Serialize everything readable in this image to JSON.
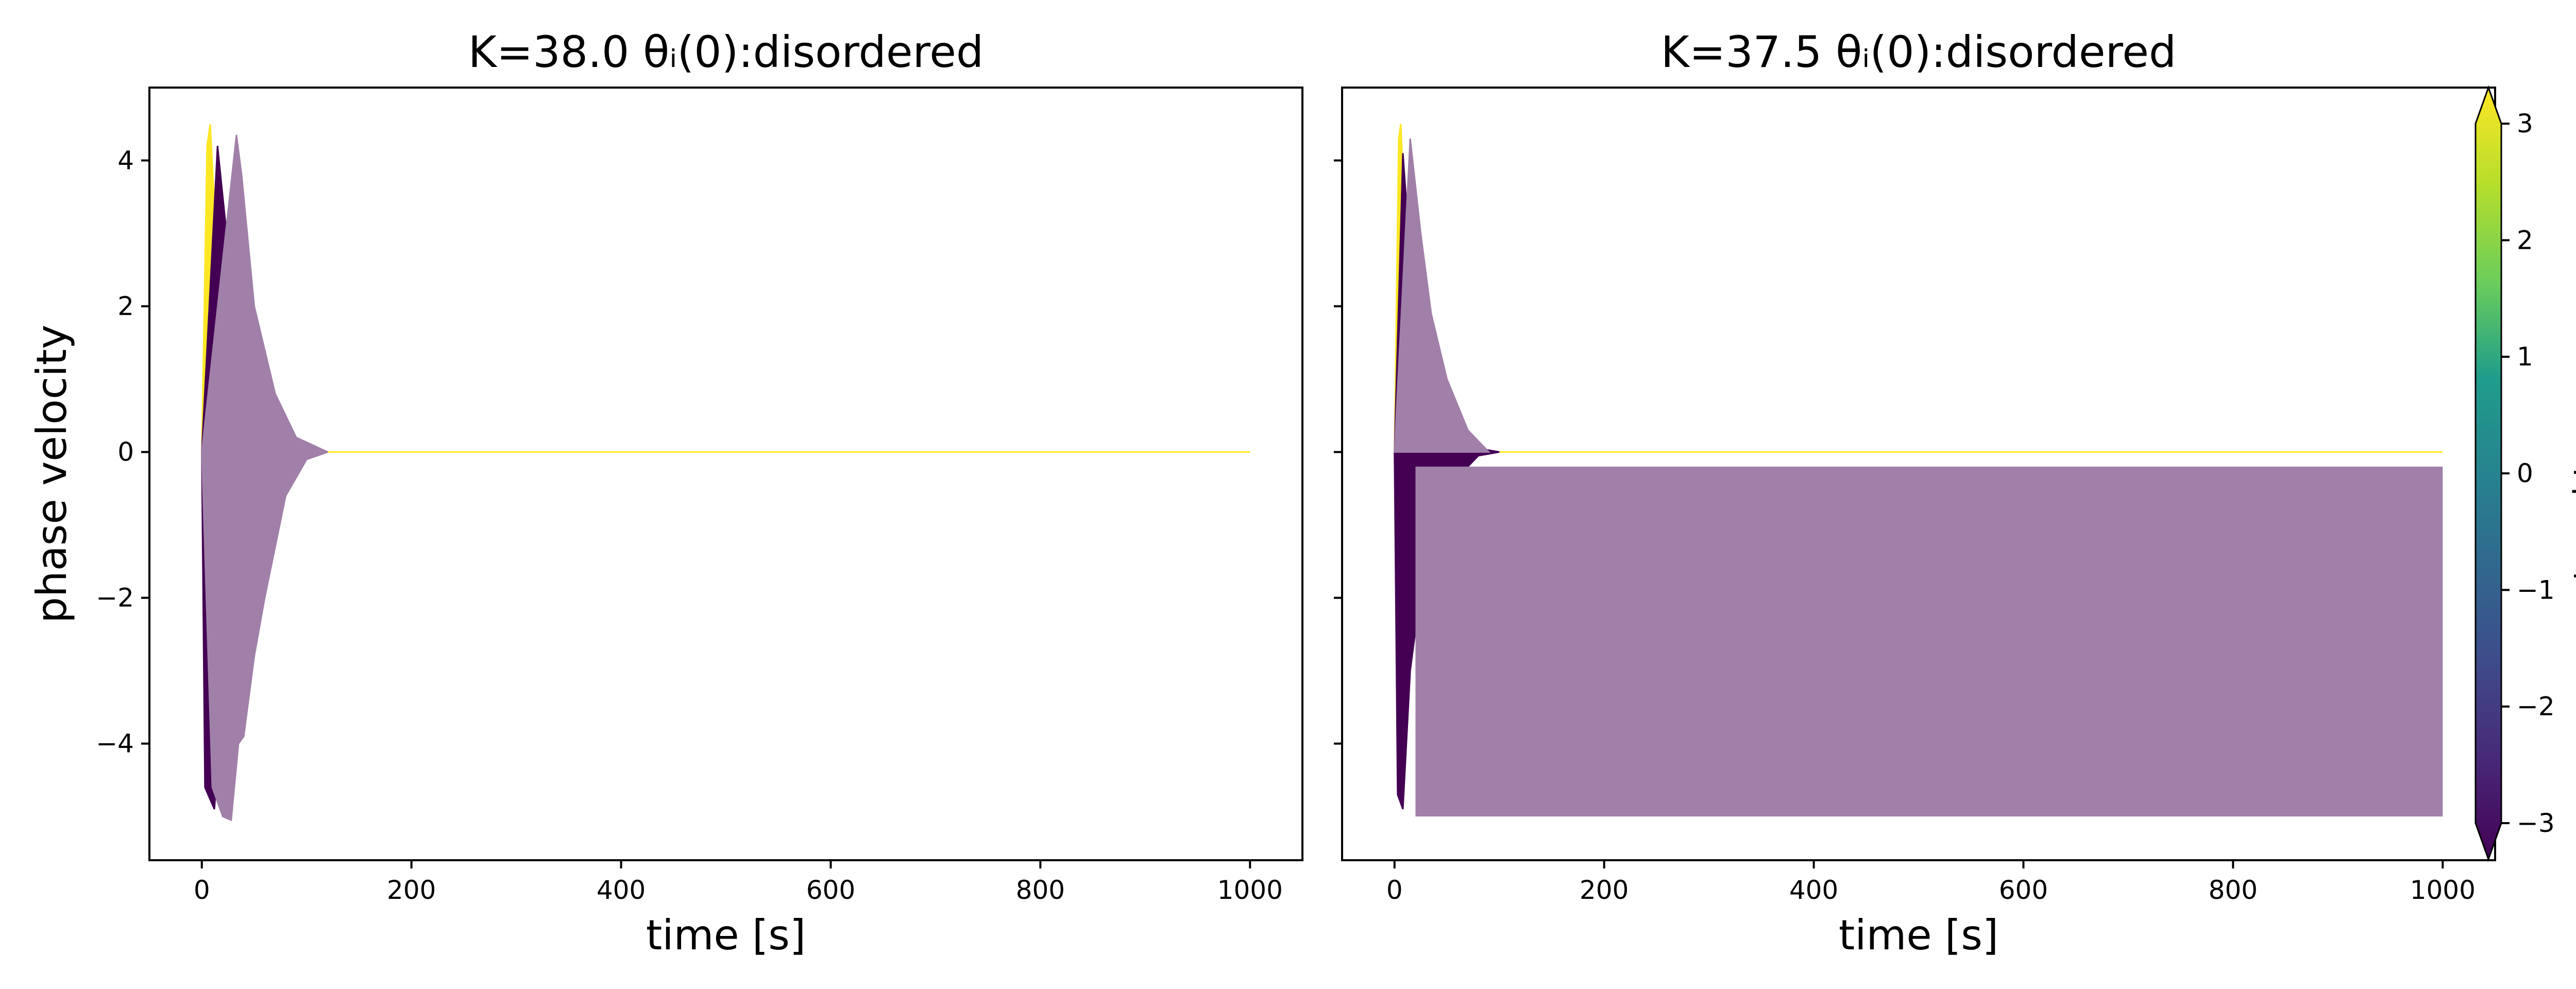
{
  "chart_data": [
    {
      "type": "line",
      "title": "K=38.0 θᵢ(0):disordered",
      "xlabel": "time [s]",
      "ylabel": "phase velocity",
      "xlim": [
        -50,
        1050
      ],
      "ylim": [
        -5.6,
        5.0
      ],
      "xticks": [
        0,
        200,
        400,
        600,
        800,
        1000
      ],
      "yticks": [
        -4,
        -2,
        0,
        2,
        4
      ],
      "grid": false,
      "series": [
        {
          "color": "#fde725",
          "x": [
            0,
            5,
            8,
            12,
            18,
            25,
            35,
            50,
            70,
            90,
            120,
            1000
          ],
          "y": [
            0,
            4.2,
            4.5,
            3.4,
            2.2,
            1.5,
            0.9,
            0.4,
            0.1,
            0.03,
            0.0,
            0.0
          ]
        },
        {
          "color": "#fde725",
          "x": [
            0,
            5,
            8,
            12,
            18,
            25,
            35,
            50,
            70,
            90,
            120,
            1000
          ],
          "y": [
            0,
            -3.6,
            -3.9,
            -3.0,
            -2.0,
            -1.3,
            -0.8,
            -0.35,
            -0.1,
            -0.03,
            0.0,
            0.0
          ]
        },
        {
          "color": "#440154",
          "x": [
            0,
            15,
            20,
            28,
            40,
            60,
            90,
            120
          ],
          "y": [
            0,
            4.2,
            3.5,
            2.4,
            1.5,
            0.6,
            0.1,
            0.0
          ]
        },
        {
          "color": "#440154",
          "x": [
            0,
            3,
            12,
            20,
            30,
            40,
            60,
            90,
            120
          ],
          "y": [
            0,
            -4.6,
            -4.9,
            -3.3,
            -2.4,
            -1.6,
            -0.7,
            -0.15,
            0.0
          ]
        },
        {
          "color": "#a080a8",
          "x": [
            0,
            33,
            38,
            50,
            60,
            70,
            90,
            120
          ],
          "y": [
            0,
            4.35,
            3.8,
            2.0,
            1.4,
            0.8,
            0.2,
            0.0
          ]
        },
        {
          "color": "#a080a8",
          "x": [
            0,
            10,
            20,
            28,
            35,
            40,
            50,
            60,
            80,
            100,
            120
          ],
          "y": [
            0,
            -4.6,
            -5.0,
            -5.05,
            -4.0,
            -3.9,
            -2.8,
            -2.0,
            -0.6,
            -0.1,
            0.0
          ]
        }
      ]
    },
    {
      "type": "line",
      "title": "K=37.5 θᵢ(0):disordered",
      "xlabel": "time [s]",
      "ylabel": "",
      "xlim": [
        -50,
        1050
      ],
      "ylim": [
        -5.6,
        5.0
      ],
      "xticks": [
        0,
        200,
        400,
        600,
        800,
        1000
      ],
      "yticks": [
        -4,
        -2,
        0,
        2,
        4
      ],
      "grid": false,
      "series": [
        {
          "color": "#fde725",
          "x": [
            0,
            4,
            6,
            10,
            15,
            20,
            30,
            45,
            60,
            80,
            100,
            1000
          ],
          "y": [
            0,
            4.3,
            4.5,
            3.2,
            2.1,
            1.4,
            0.7,
            0.3,
            0.1,
            0.02,
            0.0,
            0.0
          ]
        },
        {
          "color": "#fde725",
          "x": [
            0,
            4,
            6,
            10,
            15,
            20,
            30,
            45,
            60,
            80,
            100,
            1000
          ],
          "y": [
            0,
            -3.8,
            -4.0,
            -2.9,
            -1.9,
            -1.2,
            -0.6,
            -0.25,
            -0.08,
            -0.02,
            0.0,
            0.0
          ]
        },
        {
          "color": "#440154",
          "x": [
            0,
            8,
            12,
            20,
            30,
            50,
            80,
            100
          ],
          "y": [
            0,
            4.1,
            3.3,
            2.0,
            1.0,
            0.4,
            0.05,
            0.0
          ]
        },
        {
          "color": "#440154",
          "x": [
            0,
            3,
            8,
            15,
            25,
            35,
            50,
            80,
            100
          ],
          "y": [
            0,
            -4.7,
            -4.9,
            -3.0,
            -1.9,
            -1.2,
            -0.5,
            -0.05,
            0.0
          ]
        },
        {
          "color": "#a080a8",
          "x": [
            0,
            15,
            25,
            35,
            50,
            70,
            90
          ],
          "y": [
            0,
            4.3,
            3.0,
            1.9,
            1.0,
            0.3,
            0.0
          ]
        },
        {
          "color": "#a080a8",
          "band": true,
          "x": [
            20,
            1000
          ],
          "y_low": -5.0,
          "y_high": -0.2
        }
      ]
    }
  ],
  "colorbar": {
    "label": "external torque ωᵢ",
    "range": [
      -3,
      3
    ],
    "ticks": [
      "−3",
      "−2",
      "−1",
      "0",
      "1",
      "2",
      "3"
    ],
    "colormap": [
      "#440154",
      "#482777",
      "#3f4a8a",
      "#31678e",
      "#26838f",
      "#1f9d8a",
      "#6cce5a",
      "#b6de2b",
      "#fde725"
    ],
    "extend": "both"
  }
}
